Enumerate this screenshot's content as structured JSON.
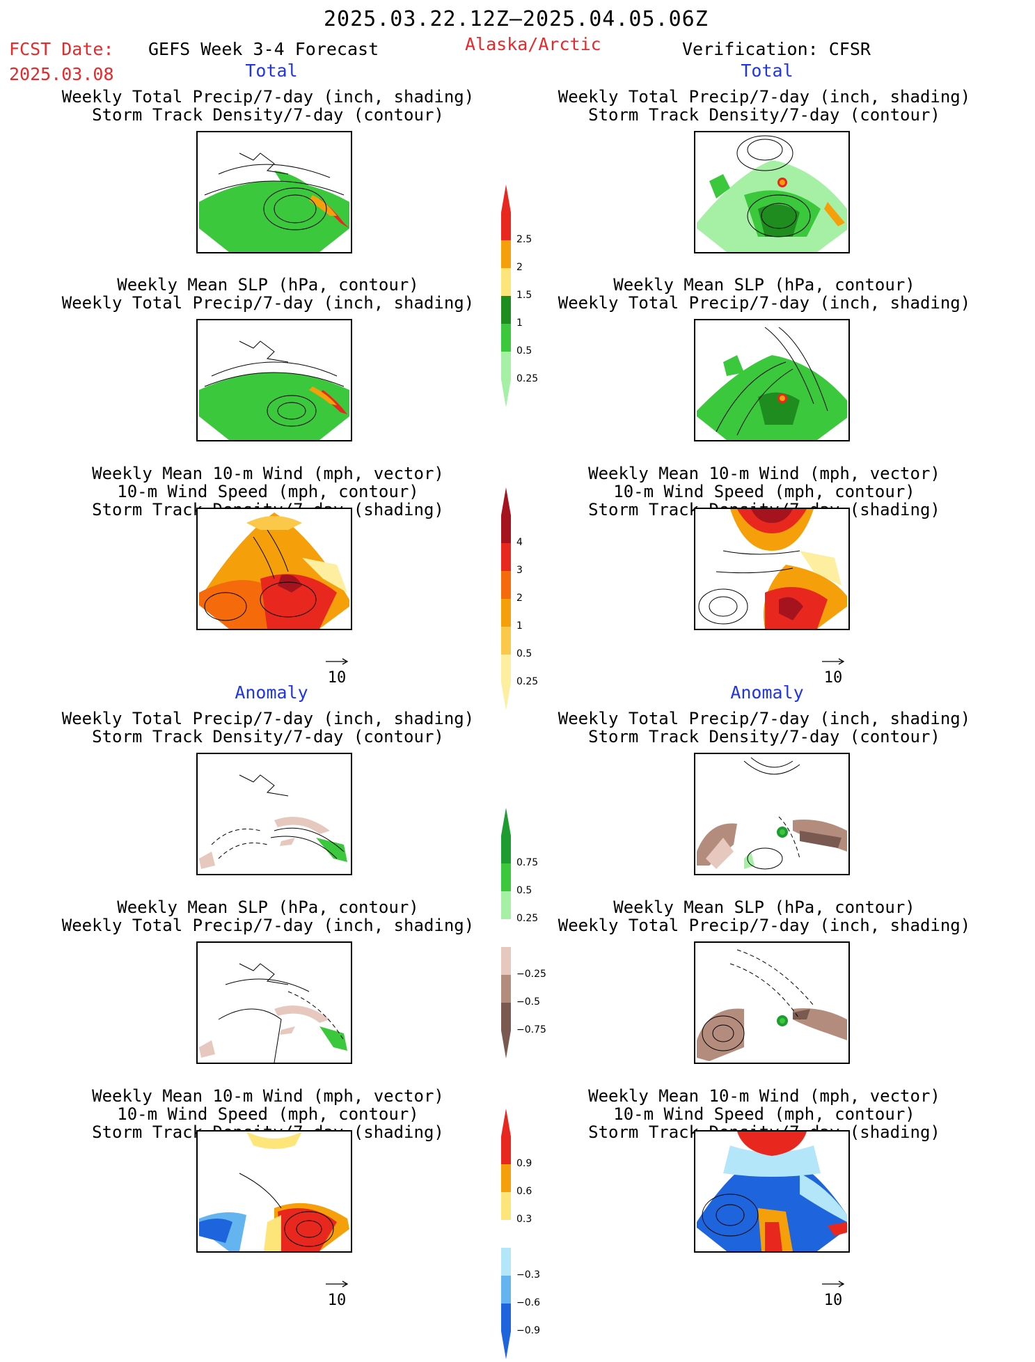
{
  "header": {
    "date_range": "2025.03.22.12Z–2025.04.05.06Z",
    "fcst_label": "FCST Date:",
    "fcst_date": "2025.03.08",
    "product": "GEFS Week 3-4 Forecast",
    "region": "Alaska/Arctic",
    "verification": "Verification: CFSR"
  },
  "sections": {
    "total_left": "Total",
    "total_right": "Total",
    "anomaly_left": "Anomaly",
    "anomaly_right": "Anomaly"
  },
  "titles": {
    "precip_storm": [
      "Weekly Total Precip/7-day (inch, shading)",
      "Storm Track Density/7-day (contour)"
    ],
    "slp_precip": [
      "Weekly Mean SLP (hPa, contour)",
      "Weekly Total Precip/7-day (inch, shading)"
    ],
    "wind_storm": [
      "Weekly Mean 10-m Wind (mph, vector)",
      "10-m Wind Speed (mph, contour)",
      "Storm Track Density/7-day (shading)"
    ]
  },
  "vector_ref": "10",
  "colorbars": {
    "precip_total": {
      "labels": [
        "2.5",
        "2",
        "1.5",
        "1",
        "0.5",
        "0.25"
      ],
      "colors": [
        "#e8281e",
        "#f5a00a",
        "#fde57a",
        "#1e8c1e",
        "#3cc83c",
        "#a6f0a6"
      ]
    },
    "storm_total": {
      "labels": [
        "4",
        "3",
        "2",
        "1",
        "0.5",
        "0.25"
      ],
      "colors": [
        "#a5141e",
        "#e8281e",
        "#f56a0a",
        "#f5a00a",
        "#fcc84a",
        "#fdeea0"
      ]
    },
    "precip_anom": {
      "labels": [
        "0.75",
        "0.5",
        "0.25",
        "−0.25",
        "−0.5",
        "−0.75"
      ],
      "colors": [
        "#1e9c32",
        "#3cc83c",
        "#a6f0a6",
        "#ffffff",
        "#e6c8be",
        "#b48c7d",
        "#7a5a50"
      ]
    },
    "storm_anom": {
      "labels": [
        "0.9",
        "0.6",
        "0.3",
        "−0.3",
        "−0.6",
        "−0.9"
      ],
      "colors": [
        "#e8281e",
        "#f5a00a",
        "#fde57a",
        "#ffffff",
        "#b4e6fa",
        "#64b4f0",
        "#1e64dc"
      ]
    }
  }
}
